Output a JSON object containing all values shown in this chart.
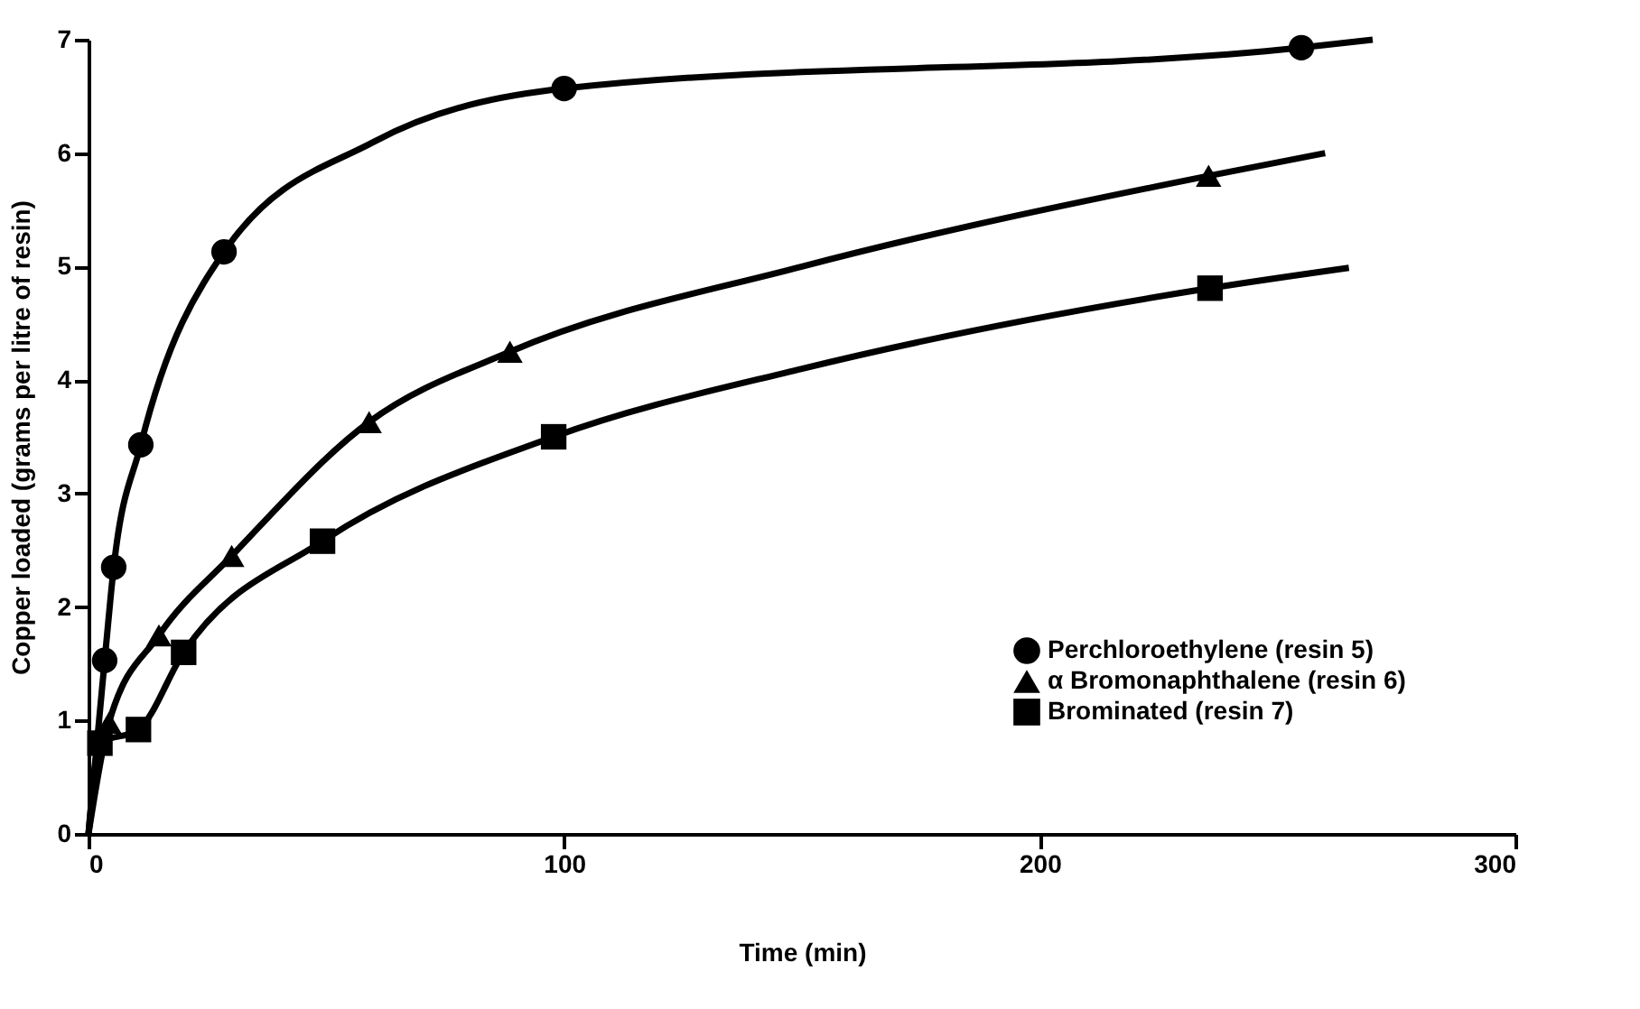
{
  "chart_data": {
    "type": "scatter",
    "xlabel": "Time (min)",
    "ylabel": "Copper loaded (grams per litre of resin)",
    "xlim": [
      0,
      300
    ],
    "xticks": [
      0,
      100,
      200,
      300
    ],
    "ylim": [
      0,
      7
    ],
    "yticks": [
      0,
      1,
      2,
      3,
      4,
      5,
      6,
      7
    ],
    "grid": false,
    "legend": "bottom right",
    "series": [
      {
        "type": "line",
        "color": "#000000",
        "x": [
          0,
          3.4,
          5.3,
          11,
          28.5,
          60,
          100,
          255,
          270
        ],
        "values": [
          0,
          1.53,
          2.35,
          3.43,
          5.13,
          6.1,
          6.57,
          6.93,
          7.0
        ]
      },
      {
        "type": "line",
        "color": "#000000",
        "x": [
          0,
          4.3,
          14.8,
          30.1,
          59,
          88.6,
          150,
          235.5,
          260
        ],
        "values": [
          0,
          0.98,
          1.75,
          2.45,
          3.63,
          4.25,
          5.0,
          5.8,
          6.0
        ]
      },
      {
        "type": "line",
        "color": "#000000",
        "x": [
          0,
          2.4,
          10.5,
          20,
          49.2,
          97.8,
          150,
          235.8,
          265
        ],
        "values": [
          0,
          0.8,
          0.92,
          1.6,
          2.58,
          3.5,
          4.1,
          4.81,
          4.99
        ]
      },
      {
        "type": "scatter",
        "name": "Perchloroethylene (resin 5)",
        "color": "#000000",
        "marker": "circle",
        "x": [
          3.4,
          5.3,
          11,
          28.5,
          100,
          255
        ],
        "values": [
          1.53,
          2.35,
          3.43,
          5.13,
          6.57,
          6.93
        ]
      },
      {
        "type": "scatter",
        "name": "α Bromonaphthalene (resin 6)",
        "color": "#000000",
        "marker": "triangle",
        "x": [
          4.3,
          14.8,
          30.1,
          59,
          88.6,
          235.5
        ],
        "values": [
          0.98,
          1.75,
          2.45,
          3.63,
          4.25,
          5.8
        ]
      },
      {
        "type": "scatter",
        "name": "Brominated (resin 7)",
        "color": "#000000",
        "marker": "square",
        "x": [
          2.4,
          10.5,
          20,
          49.2,
          97.8,
          235.8
        ],
        "values": [
          0.8,
          0.92,
          1.6,
          2.58,
          3.5,
          4.81
        ]
      }
    ]
  }
}
